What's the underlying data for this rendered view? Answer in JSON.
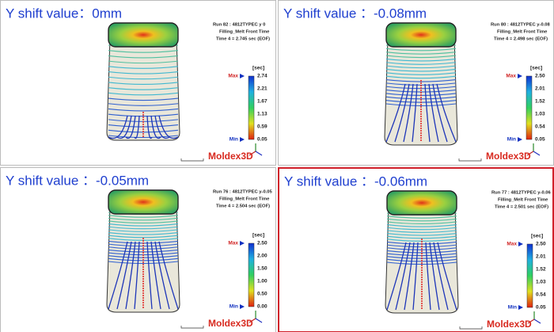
{
  "panels": [
    {
      "title": "Y shift value：0mm",
      "run": "Run 82 : 4812TYPEC y 0",
      "result": "Filling_Melt Front Time",
      "time": "Time 4 = 2.745 sec (EOF)",
      "unit": "[sec]",
      "max_label": "Max",
      "min_label": "Min",
      "scale": [
        "2.74",
        "2.21",
        "1.67",
        "1.13",
        "0.59",
        "0.05"
      ],
      "logo": "Moldex3D"
    },
    {
      "title": "Y shift value ：-0.08mm",
      "run": "Run 80 : 4812TYPEC y-0.08",
      "result": "Filling_Melt Front Time",
      "time": "Time 4 = 2.498 sec (EOF)",
      "unit": "[sec]",
      "max_label": "Max",
      "min_label": "Min",
      "scale": [
        "2.50",
        "2.01",
        "1.52",
        "1.03",
        "0.54",
        "0.05"
      ],
      "logo": "Moldex3D"
    },
    {
      "title": "Y shift value ：-0.05mm",
      "run": "Run 76 : 4812TYPEC y-0.05",
      "result": "Filling_Melt Front Time",
      "time": "Time 4 = 2.504 sec (EOF)",
      "unit": "[sec]",
      "max_label": "Max",
      "min_label": "Min",
      "scale": [
        "2.50",
        "2.00",
        "1.50",
        "1.00",
        "0.50",
        "0.00"
      ],
      "logo": "Moldex3D"
    },
    {
      "title": "Y shift value ：-0.06mm",
      "run": "Run 77 : 4812TYPEC y-0.06",
      "result": "Filling_Melt Front Time",
      "time": "Time 4 = 2.501 sec (EOF)",
      "unit": "[sec]",
      "max_label": "Max",
      "min_label": "Min",
      "scale": [
        "2.50",
        "2.01",
        "1.52",
        "1.03",
        "0.54",
        "0.05"
      ],
      "logo": "Moldex3D"
    }
  ]
}
